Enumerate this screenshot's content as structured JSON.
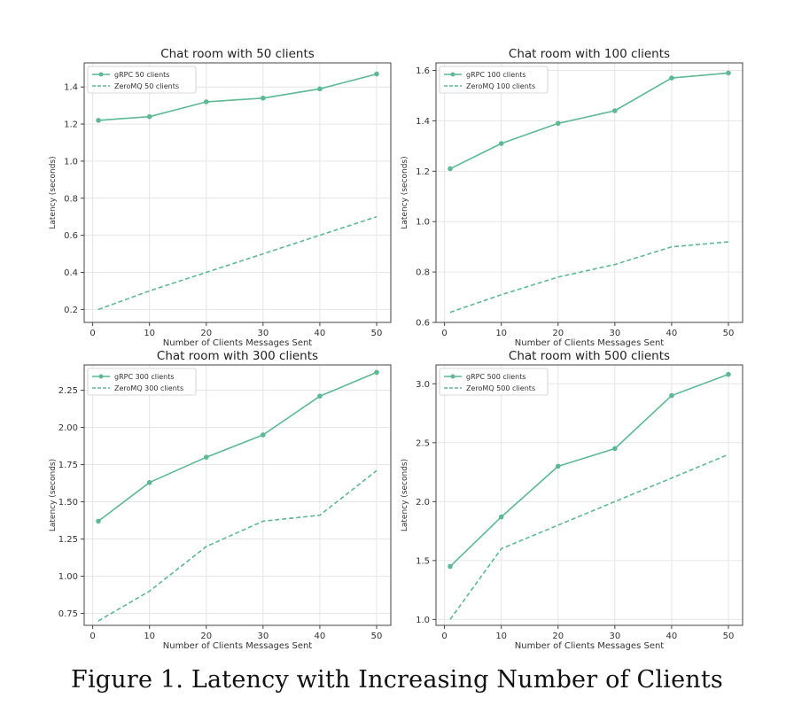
{
  "caption": "Figure 1. Latency with Increasing Number of Clients",
  "colors": {
    "line": "#5cb993",
    "axis": "#444444",
    "grid": "#e6e6e6",
    "text": "#333333"
  },
  "chart_data": [
    {
      "type": "line",
      "title": "Chat room with 50 clients",
      "xlabel": "Number of Clients Messages Sent",
      "ylabel": "Latency (seconds)",
      "x": [
        1,
        10,
        20,
        30,
        40,
        50
      ],
      "xlim": [
        -1.5,
        52.5
      ],
      "ylim": [
        0.13,
        1.53
      ],
      "xticks": [
        0,
        10,
        20,
        30,
        40,
        50
      ],
      "yticks": [
        0.2,
        0.4,
        0.6,
        0.8,
        1.0,
        1.2,
        1.4
      ],
      "yticklabels": [
        "0.2",
        "0.4",
        "0.6",
        "0.8",
        "1.0",
        "1.2",
        "1.4"
      ],
      "grid": true,
      "legend": "top-left",
      "series": [
        {
          "name": "gRPC 50 clients",
          "style": "solid-marker",
          "values": [
            1.22,
            1.24,
            1.32,
            1.34,
            1.39,
            1.47
          ]
        },
        {
          "name": "ZeroMQ 50 clients",
          "style": "dashed",
          "values": [
            0.2,
            0.3,
            0.4,
            0.5,
            0.6,
            0.7
          ]
        }
      ]
    },
    {
      "type": "line",
      "title": "Chat room with 100 clients",
      "xlabel": "Number of Clients Messages Sent",
      "ylabel": "Latency (seconds)",
      "x": [
        1,
        10,
        20,
        30,
        40,
        50
      ],
      "xlim": [
        -1.5,
        52.5
      ],
      "ylim": [
        0.6,
        1.63
      ],
      "xticks": [
        0,
        10,
        20,
        30,
        40,
        50
      ],
      "yticks": [
        0.6,
        0.8,
        1.0,
        1.2,
        1.4,
        1.6
      ],
      "yticklabels": [
        "0.6",
        "0.8",
        "1.0",
        "1.2",
        "1.4",
        "1.6"
      ],
      "grid": true,
      "legend": "top-left",
      "series": [
        {
          "name": "gRPC 100 clients",
          "style": "solid-marker",
          "values": [
            1.21,
            1.31,
            1.39,
            1.44,
            1.57,
            1.59
          ]
        },
        {
          "name": "ZeroMQ 100 clients",
          "style": "dashed",
          "values": [
            0.64,
            0.71,
            0.78,
            0.83,
            0.9,
            0.92
          ]
        }
      ]
    },
    {
      "type": "line",
      "title": "Chat room with 300 clients",
      "xlabel": "Number of Clients Messages Sent",
      "ylabel": "Latency (seconds)",
      "x": [
        1,
        10,
        20,
        30,
        40,
        50
      ],
      "xlim": [
        -1.5,
        52.5
      ],
      "ylim": [
        0.67,
        2.42
      ],
      "xticks": [
        0,
        10,
        20,
        30,
        40,
        50
      ],
      "yticks": [
        0.75,
        1.0,
        1.25,
        1.5,
        1.75,
        2.0,
        2.25
      ],
      "yticklabels": [
        "0.75",
        "1.00",
        "1.25",
        "1.50",
        "1.75",
        "2.00",
        "2.25"
      ],
      "grid": true,
      "legend": "top-left",
      "series": [
        {
          "name": "gRPC 300 clients",
          "style": "solid-marker",
          "values": [
            1.37,
            1.63,
            1.8,
            1.95,
            2.21,
            2.37
          ]
        },
        {
          "name": "ZeroMQ 300 clients",
          "style": "dashed",
          "values": [
            0.7,
            0.9,
            1.2,
            1.37,
            1.41,
            1.71
          ]
        }
      ]
    },
    {
      "type": "line",
      "title": "Chat room with 500 clients",
      "xlabel": "Number of Clients Messages Sent",
      "ylabel": "Latency (seconds)",
      "x": [
        1,
        10,
        20,
        30,
        40,
        50
      ],
      "xlim": [
        -1.5,
        52.5
      ],
      "ylim": [
        0.95,
        3.16
      ],
      "xticks": [
        0,
        10,
        20,
        30,
        40,
        50
      ],
      "yticks": [
        1.0,
        1.5,
        2.0,
        2.5,
        3.0
      ],
      "yticklabels": [
        "1.0",
        "1.5",
        "2.0",
        "2.5",
        "3.0"
      ],
      "grid": true,
      "legend": "top-left",
      "series": [
        {
          "name": "gRPC 500 clients",
          "style": "solid-marker",
          "values": [
            1.45,
            1.87,
            2.3,
            2.45,
            2.9,
            3.08
          ]
        },
        {
          "name": "ZeroMQ 500 clients",
          "style": "dashed",
          "values": [
            1.0,
            1.6,
            1.8,
            2.0,
            2.2,
            2.4
          ]
        }
      ]
    }
  ]
}
